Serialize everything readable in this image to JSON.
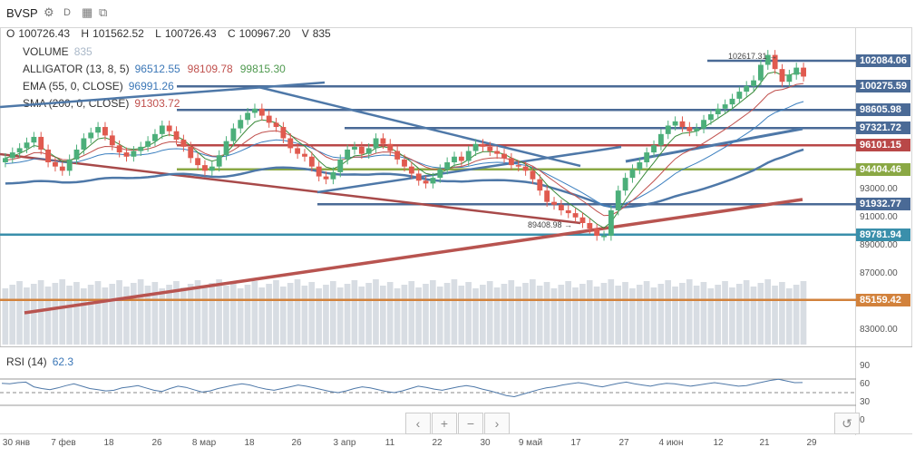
{
  "header": {
    "symbol": "BVSP",
    "interval": "D",
    "ohlc": {
      "o_label": "O",
      "o": "100726.43",
      "h_label": "H",
      "h": "101562.52",
      "l_label": "L",
      "l": "100726.43",
      "c_label": "C",
      "c": "100967.20",
      "v_label": "V",
      "v": "835"
    }
  },
  "indicators": [
    {
      "name": "VOLUME",
      "values": [
        "835"
      ],
      "colors": [
        "#aab8c8"
      ]
    },
    {
      "name": "ALLIGATOR (13, 8, 5)",
      "values": [
        "96512.55",
        "98109.78",
        "99815.30"
      ],
      "colors": [
        "#3b77b7",
        "#c0504d",
        "#4f9a4f"
      ]
    },
    {
      "name": "EMA (55, 0, CLOSE)",
      "values": [
        "96991.26"
      ],
      "colors": [
        "#3b77b7"
      ]
    },
    {
      "name": "SMA (200, 0, CLOSE)",
      "values": [
        "91303.72"
      ],
      "colors": [
        "#c0504d"
      ]
    }
  ],
  "rsi": {
    "name": "RSI (14)",
    "value": "62.3",
    "levels": [
      "90",
      "60",
      "30",
      "0"
    ]
  },
  "price_axis": [
    "93000.00",
    "91000.00",
    "89000.00",
    "87000.00",
    "85000.00",
    "83000.00"
  ],
  "price_tags": [
    {
      "value": "102084.06",
      "color": "#4a6a96"
    },
    {
      "value": "100275.59",
      "color": "#4a6a96"
    },
    {
      "value": "98605.98",
      "color": "#4a6a96"
    },
    {
      "value": "97321.72",
      "color": "#4a6a96"
    },
    {
      "value": "96101.15",
      "color": "#b94848"
    },
    {
      "value": "94404.46",
      "color": "#8aa844"
    },
    {
      "value": "91932.77",
      "color": "#4a6a96"
    },
    {
      "value": "89781.94",
      "color": "#3a8fab"
    },
    {
      "value": "85159.42",
      "color": "#d2823c"
    }
  ],
  "annotations": {
    "high": "102617.31 →",
    "low": "89408.98 →"
  },
  "x_ticks": [
    "30 янв",
    "7 фев",
    "18",
    "26",
    "8 мар",
    "18",
    "26",
    "3 апр",
    "11",
    "22",
    "30",
    "9 май",
    "17",
    "27",
    "4 июн",
    "12",
    "21",
    "29"
  ],
  "nav": [
    "‹",
    "+",
    "−",
    "›",
    "↺"
  ],
  "chart_data": {
    "type": "candlestick",
    "title": "BVSP",
    "y_range": [
      82000,
      103500
    ],
    "hlines": [
      102084.06,
      100275.59,
      98605.98,
      97321.72,
      96101.15,
      94404.46,
      91932.77,
      89781.94,
      85159.42
    ],
    "closes": [
      95200,
      95600,
      95900,
      96300,
      96700,
      95800,
      94900,
      94600,
      94300,
      95100,
      95800,
      96600,
      97000,
      97400,
      96800,
      96100,
      95600,
      95300,
      95700,
      96000,
      96400,
      96900,
      97500,
      97100,
      96500,
      96000,
      95200,
      94700,
      94300,
      94600,
      95400,
      96400,
      97300,
      97900,
      98400,
      98700,
      98200,
      97700,
      97400,
      96600,
      95900,
      95500,
      95300,
      94600,
      93900,
      93700,
      94200,
      95100,
      95800,
      96000,
      95500,
      95900,
      96600,
      96200,
      95700,
      95100,
      94600,
      94100,
      93600,
      93400,
      93800,
      94400,
      94900,
      95300,
      95000,
      95700,
      96200,
      96000,
      95700,
      95500,
      95200,
      94700,
      94600,
      94300,
      93700,
      92900,
      92100,
      91900,
      91500,
      91300,
      91000,
      90600,
      90200,
      89700,
      89700,
      91500,
      92900,
      93800,
      94400,
      94900,
      95600,
      96100,
      96900,
      97500,
      97800,
      97400,
      97100,
      97300,
      97900,
      98300,
      98700,
      99000,
      99400,
      99900,
      100300,
      100700,
      101800,
      102500,
      101500,
      100600,
      101100,
      101600,
      100967
    ],
    "rsi_values": [
      61,
      60,
      62,
      63,
      55,
      52,
      50,
      53,
      57,
      60,
      56,
      52,
      50,
      48,
      49,
      53,
      55,
      57,
      53,
      49,
      47,
      52,
      56,
      54,
      50,
      46,
      48,
      52,
      55,
      58,
      60,
      58,
      54,
      51,
      49,
      52,
      55,
      58,
      56,
      53,
      50,
      47,
      45,
      48,
      52,
      55,
      53,
      50,
      47,
      45,
      48,
      52,
      56,
      54,
      51,
      49,
      52,
      55,
      57,
      55,
      51,
      48,
      44,
      40,
      38,
      42,
      46,
      50,
      53,
      55,
      58,
      60,
      62,
      60,
      57,
      55,
      58,
      61,
      63,
      60,
      58,
      56,
      59,
      61,
      60,
      58,
      56,
      58,
      60,
      62,
      60,
      58,
      56,
      57,
      60,
      63,
      66,
      68,
      65,
      62,
      62.3
    ]
  }
}
